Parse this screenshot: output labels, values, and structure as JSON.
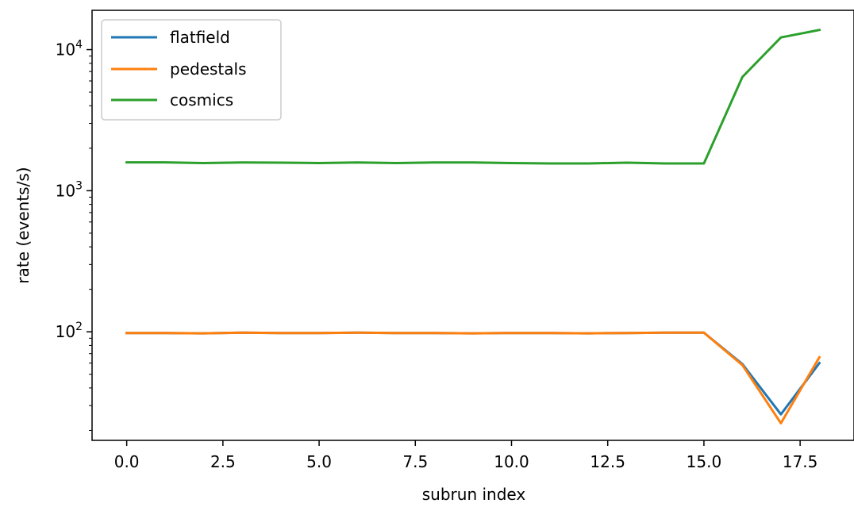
{
  "chart_data": {
    "type": "line",
    "xlabel": "subrun index",
    "ylabel": "rate (events/s)",
    "yscale": "log",
    "xlim": [
      -0.9,
      18.9
    ],
    "ylim": [
      17,
      19000
    ],
    "x": [
      0,
      1,
      2,
      3,
      4,
      5,
      6,
      7,
      8,
      9,
      10,
      11,
      12,
      13,
      14,
      15,
      16,
      17,
      18
    ],
    "x_ticks": [
      {
        "value": 0.0,
        "label": "0.0"
      },
      {
        "value": 2.5,
        "label": "2.5"
      },
      {
        "value": 5.0,
        "label": "5.0"
      },
      {
        "value": 7.5,
        "label": "7.5"
      },
      {
        "value": 10.0,
        "label": "10.0"
      },
      {
        "value": 12.5,
        "label": "12.5"
      },
      {
        "value": 15.0,
        "label": "15.0"
      },
      {
        "value": 17.5,
        "label": "17.5"
      }
    ],
    "y_ticks": [
      {
        "value": 100,
        "base": "10",
        "exp": "2"
      },
      {
        "value": 1000,
        "base": "10",
        "exp": "3"
      },
      {
        "value": 10000,
        "base": "10",
        "exp": "4"
      }
    ],
    "grid": false,
    "legend_position": "top-left",
    "series": [
      {
        "name": "flatfield",
        "color": "#1f77b4",
        "values": [
          98,
          98,
          97.5,
          98.5,
          98,
          98,
          98.5,
          98,
          98,
          97.5,
          98,
          98,
          97.5,
          98,
          98.5,
          98.5,
          59,
          26,
          60
        ]
      },
      {
        "name": "pedestals",
        "color": "#ff7f0e",
        "values": [
          98,
          98,
          97.5,
          98.5,
          98,
          98,
          98.5,
          98,
          98,
          97.5,
          98,
          98,
          97.5,
          98,
          98.5,
          98.5,
          58,
          22.5,
          66
        ]
      },
      {
        "name": "cosmics",
        "color": "#2ca02c",
        "values": [
          1590,
          1590,
          1570,
          1585,
          1580,
          1570,
          1585,
          1570,
          1585,
          1585,
          1570,
          1560,
          1560,
          1580,
          1560,
          1560,
          6400,
          12200,
          13800
        ]
      }
    ]
  }
}
